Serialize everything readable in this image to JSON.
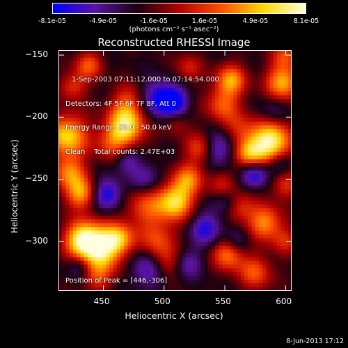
{
  "colorbar": {
    "ticks": [
      "-8.1e-05",
      "-4.9e-05",
      "-1.6e-05",
      "1.6e-05",
      "4.9e-05",
      "8.1e-05"
    ],
    "unit_label": "(photons cm⁻² s⁻¹ asec⁻²)",
    "colors": [
      "#0000ff",
      "#5a14a0",
      "#1a0010",
      "#b40000",
      "#ff5000",
      "#ffd800",
      "#ffffe0"
    ]
  },
  "chart_data": {
    "type": "heatmap",
    "title": "Reconstructed RHESSI Image",
    "xlabel": "Heliocentric X (arcsec)",
    "ylabel": "Heliocentric Y (arcsec)",
    "xlim": [
      413,
      605
    ],
    "ylim": [
      -340,
      -146
    ],
    "xticks": [
      450,
      500,
      550,
      600
    ],
    "yticks": [
      -150,
      -200,
      -250,
      -300
    ],
    "peak": [
      446,
      -306
    ],
    "info_lines": [
      "1-Sep-2003 07:11:12.000 to 07:14:54.000",
      "Detectors: 4F 5F 6F 7F 8F, Att 0",
      "Energy Range: 25.0 - 50.0 keV",
      "Clean    Total counts: 2.47E+03"
    ],
    "peak_text": "Position of Peak = [446,-306]"
  },
  "footer": "8-Jun-2013 17:12"
}
